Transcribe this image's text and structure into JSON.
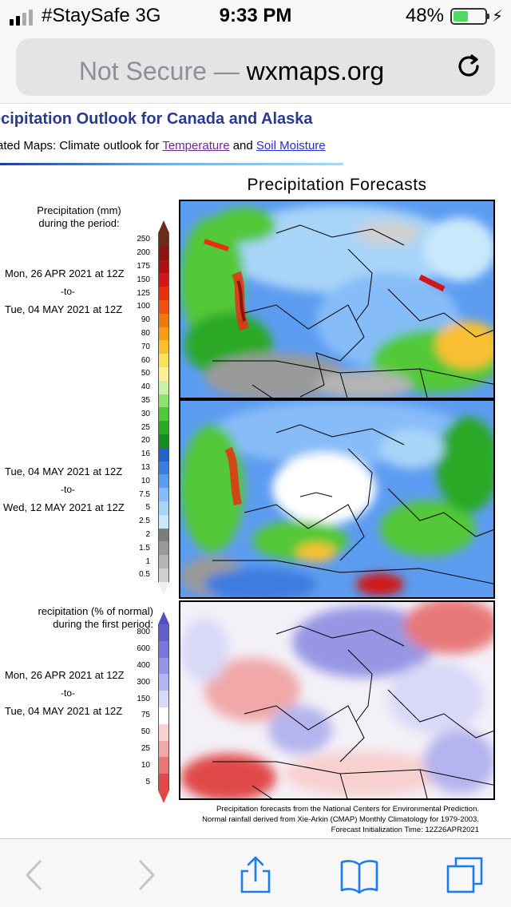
{
  "status": {
    "carrier": "#StaySafe  3G",
    "time": "9:33 PM",
    "battery": "48%",
    "battery_level": 0.48
  },
  "browser": {
    "not_secure": "Not Secure",
    "separator": " — ",
    "domain": "wxmaps.org"
  },
  "page": {
    "title": "ecipitation Outlook for Canada and Alaska",
    "related_prefix": "ated Maps: Climate outlook for ",
    "related_link1": "Temperature",
    "related_and": " and ",
    "related_link2": "Soil Moisture"
  },
  "figure": {
    "title": "Precipitation Forecasts",
    "mm_label_1": "Precipitation (mm)",
    "mm_label_2": "during the period:",
    "pct_label_1": "recipitation (% of normal)",
    "pct_label_2": "during the first period:",
    "to_label": "-to-",
    "period1_start": "Mon, 26 APR 2021 at 12Z",
    "period1_end": "Tue, 04 MAY 2021 at 12Z",
    "period2_start": "Tue, 04 MAY 2021 at 12Z",
    "period2_end": "Wed, 12 MAY 2021 at 12Z",
    "period3_start": "Mon, 26 APR 2021 at 12Z",
    "period3_end": "Tue, 04 MAY 2021 at 12Z",
    "mm_ticks": [
      "250",
      "200",
      "175",
      "150",
      "125",
      "100",
      "90",
      "80",
      "70",
      "60",
      "50",
      "40",
      "35",
      "30",
      "25",
      "20",
      "16",
      "13",
      "10",
      "7.5",
      "5",
      "2.5",
      "2",
      "1.5",
      "1",
      "0.5"
    ],
    "mm_colors": [
      "#6b2a1c",
      "#8a1414",
      "#b01010",
      "#d01818",
      "#e83010",
      "#f05010",
      "#f07810",
      "#f59c18",
      "#f8c030",
      "#f8e060",
      "#fcf098",
      "#c8f0a8",
      "#8ee070",
      "#52c838",
      "#2aa828",
      "#168c20",
      "#2860c8",
      "#3c7ce0",
      "#5c9cf0",
      "#86bcf8",
      "#a8d4f8",
      "#c8e8fc",
      "#7c7c7c",
      "#9a9a9a",
      "#b4b4b4",
      "#d0d0d0"
    ],
    "pct_ticks": [
      "800",
      "600",
      "400",
      "300",
      "150",
      "75",
      "50",
      "25",
      "10",
      "5"
    ],
    "pct_colors": [
      "#6060c8",
      "#7878d8",
      "#9696e4",
      "#b4b4ee",
      "#d8d8f8",
      "#ffffff",
      "#f8d0d0",
      "#f0a8a8",
      "#e87878",
      "#e04848"
    ],
    "credit_1": "Precipitation forecasts from the National Centers for Environmental Prediction.",
    "credit_2": "Normal rainfall derived from Xie-Arkin (CMAP) Monthly Climatology for 1979-2003.",
    "credit_3": "Forecast Initialization Time: 12Z26APR2021"
  },
  "toolbar": {
    "back": "back-icon",
    "forward": "forward-icon",
    "share": "share-icon",
    "bookmarks": "bookmarks-icon",
    "tabs": "tabs-icon"
  }
}
